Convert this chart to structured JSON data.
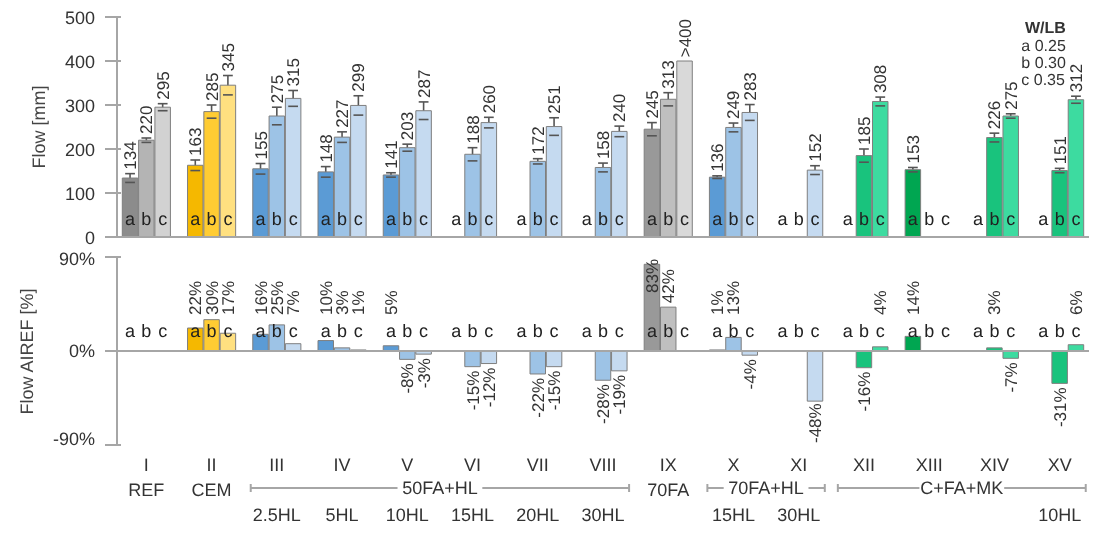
{
  "chart_data": [
    {
      "type": "bar",
      "ylabel": "Flow [mm]",
      "legend_title": "W/LB",
      "categories": [
        null,
        null,
        null,
        null,
        null,
        null,
        null,
        null,
        null,
        null,
        null,
        null,
        null,
        null,
        null
      ],
      "ylim": [
        0,
        500
      ],
      "yticks": [
        0,
        100,
        200,
        300,
        400,
        500
      ],
      "tick_labels": "y",
      "grid": false,
      "annotations": [
        "a 0.25",
        "b 0.30",
        "c 0.35"
      ],
      "series": [
        {
          "name": "a",
          "values": [
            134,
            163,
            155,
            148,
            141,
            null,
            null,
            null,
            245,
            136,
            null,
            null,
            153,
            null,
            null
          ],
          "value_labels": [
            "134",
            "163",
            "155",
            "148",
            "141",
            null,
            null,
            null,
            "245",
            "136",
            null,
            null,
            "153",
            null,
            null
          ],
          "errors": [
            10,
            12,
            12,
            12,
            5,
            null,
            null,
            null,
            15,
            3,
            null,
            null,
            5,
            null,
            null
          ],
          "colors": [
            "#8c8c8c",
            "#f5b800",
            "#5b9bd5",
            "#5b9bd5",
            "#5b9bd5",
            "#5b9bd5",
            "#5b9bd5",
            "#5b9bd5",
            "#999999",
            "#5b9bd5",
            "#5b9bd5",
            "#00a651",
            "#00a651",
            "#00a651",
            "#00a651"
          ]
        },
        {
          "name": "b",
          "values": [
            220,
            285,
            275,
            227,
            203,
            188,
            172,
            158,
            313,
            249,
            null,
            185,
            null,
            226,
            151
          ],
          "value_labels": [
            "220",
            "285",
            "275",
            "227",
            "203",
            "188",
            "172",
            "158",
            "313",
            "249",
            null,
            "185",
            null,
            "226",
            "151"
          ],
          "errors": [
            5,
            15,
            20,
            12,
            8,
            15,
            6,
            10,
            15,
            10,
            null,
            15,
            null,
            10,
            5
          ],
          "colors": [
            "#b4b4b4",
            "#ffcc33",
            "#9dc3e6",
            "#9dc3e6",
            "#9dc3e6",
            "#9dc3e6",
            "#9dc3e6",
            "#9dc3e6",
            "#bfbfbf",
            "#9dc3e6",
            "#9dc3e6",
            "#19c37d",
            "#19c37d",
            "#19c37d",
            "#19c37d"
          ]
        },
        {
          "name": "c",
          "values": [
            295,
            345,
            315,
            299,
            287,
            260,
            251,
            240,
            400,
            283,
            152,
            308,
            null,
            275,
            312
          ],
          "value_labels": [
            "295",
            "345",
            "315",
            "299",
            "287",
            "260",
            "251",
            "240",
            ">400",
            "283",
            "152",
            "308",
            null,
            "275",
            "312"
          ],
          "errors": [
            8,
            22,
            18,
            22,
            20,
            12,
            20,
            12,
            null,
            18,
            10,
            10,
            null,
            5,
            8
          ],
          "colors": [
            "#d2d2d2",
            "#ffe080",
            "#c5daf0",
            "#c5daf0",
            "#c5daf0",
            "#c5daf0",
            "#c5daf0",
            "#c5daf0",
            "#d9d9d9",
            "#c5daf0",
            "#c5daf0",
            "#3ddba0",
            "#3ddba0",
            "#3ddba0",
            "#3ddba0"
          ]
        }
      ]
    },
    {
      "type": "bar",
      "ylabel": "Flow AIREF [%]",
      "categories": [
        "I\nREF",
        "II\nCEM",
        "III\n\n2.5HL",
        "IV\n\n5HL",
        "V\n\n10HL",
        "VI\n\n15HL",
        "VII\n\n20HL",
        "VIII\n\n30HL",
        "IX\n70FA",
        "X\n\n15HL",
        "XI\n\n30HL",
        "XII",
        "XIII",
        "XIV",
        "XV\n\n10HL"
      ],
      "ylim": [
        -90,
        90
      ],
      "yticks": [
        {
          "value": -90,
          "label": "-90%"
        },
        {
          "value": 0,
          "label": "0%"
        },
        {
          "value": 90,
          "label": "90%"
        }
      ],
      "grid": false,
      "ref_lines": [
        {
          "axis": "y",
          "value": 0,
          "color": "#a6a6a6"
        }
      ],
      "annotations": [
        "50FA+HL",
        "70FA+HL",
        "C+FA+MK"
      ],
      "series": [
        {
          "name": "a",
          "values": [
            null,
            22,
            16,
            10,
            5,
            null,
            null,
            null,
            83,
            1,
            null,
            null,
            14,
            null,
            null
          ],
          "value_labels": [
            null,
            "22%",
            "16%",
            "10%",
            "5%",
            null,
            null,
            null,
            "83%",
            "1%",
            null,
            null,
            "14%",
            null,
            null
          ],
          "colors": [
            "#8c8c8c",
            "#f5b800",
            "#5b9bd5",
            "#5b9bd5",
            "#5b9bd5",
            "#5b9bd5",
            "#5b9bd5",
            "#5b9bd5",
            "#999999",
            "#5b9bd5",
            "#5b9bd5",
            "#00a651",
            "#00a651",
            "#00a651",
            "#00a651"
          ]
        },
        {
          "name": "b",
          "values": [
            null,
            30,
            25,
            3,
            -8,
            -15,
            -22,
            -28,
            42,
            13,
            null,
            -16,
            null,
            3,
            -31
          ],
          "value_labels": [
            null,
            "30%",
            "25%",
            "3%",
            "-8%",
            "-15%",
            "-22%",
            "-28%",
            "42%",
            "13%",
            null,
            "-16%",
            null,
            "3%",
            "-31%"
          ],
          "colors": [
            "#b4b4b4",
            "#ffcc33",
            "#9dc3e6",
            "#9dc3e6",
            "#9dc3e6",
            "#9dc3e6",
            "#9dc3e6",
            "#9dc3e6",
            "#bfbfbf",
            "#9dc3e6",
            "#9dc3e6",
            "#19c37d",
            "#19c37d",
            "#19c37d",
            "#19c37d"
          ]
        },
        {
          "name": "c",
          "values": [
            null,
            17,
            7,
            1,
            -3,
            -12,
            -15,
            -19,
            null,
            -4,
            -48,
            4,
            null,
            -7,
            6
          ],
          "value_labels": [
            null,
            "17%",
            "7%",
            "1%",
            "-3%",
            "-12%",
            "-15%",
            "-19%",
            null,
            "-4%",
            "-48%",
            "4%",
            null,
            "-7%",
            "6%"
          ],
          "colors": [
            "#d2d2d2",
            "#ffe080",
            "#c5daf0",
            "#c5daf0",
            "#c5daf0",
            "#c5daf0",
            "#c5daf0",
            "#c5daf0",
            "#d9d9d9",
            "#c5daf0",
            "#c5daf0",
            "#3ddba0",
            "#3ddba0",
            "#3ddba0",
            "#3ddba0"
          ]
        }
      ]
    }
  ]
}
